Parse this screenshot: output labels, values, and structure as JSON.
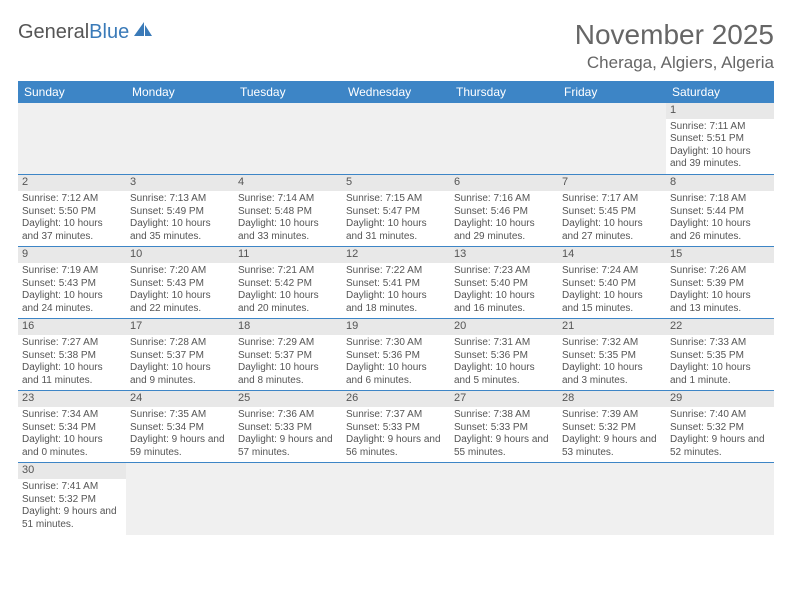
{
  "logo": {
    "text1": "General",
    "text2": "Blue"
  },
  "title": "November 2025",
  "location": "Cheraga, Algiers, Algeria",
  "colors": {
    "header_bg": "#3d85c6",
    "header_text": "#ffffff",
    "daynum_bg": "#e8e8e8",
    "empty_bg": "#f0f0f0",
    "border": "#3d85c6",
    "text": "#555555",
    "logo_blue": "#3a7ab8",
    "background": "#ffffff"
  },
  "day_headers": [
    "Sunday",
    "Monday",
    "Tuesday",
    "Wednesday",
    "Thursday",
    "Friday",
    "Saturday"
  ],
  "weeks": [
    [
      null,
      null,
      null,
      null,
      null,
      null,
      {
        "n": "1",
        "sr": "Sunrise: 7:11 AM",
        "ss": "Sunset: 5:51 PM",
        "dl": "Daylight: 10 hours and 39 minutes."
      }
    ],
    [
      {
        "n": "2",
        "sr": "Sunrise: 7:12 AM",
        "ss": "Sunset: 5:50 PM",
        "dl": "Daylight: 10 hours and 37 minutes."
      },
      {
        "n": "3",
        "sr": "Sunrise: 7:13 AM",
        "ss": "Sunset: 5:49 PM",
        "dl": "Daylight: 10 hours and 35 minutes."
      },
      {
        "n": "4",
        "sr": "Sunrise: 7:14 AM",
        "ss": "Sunset: 5:48 PM",
        "dl": "Daylight: 10 hours and 33 minutes."
      },
      {
        "n": "5",
        "sr": "Sunrise: 7:15 AM",
        "ss": "Sunset: 5:47 PM",
        "dl": "Daylight: 10 hours and 31 minutes."
      },
      {
        "n": "6",
        "sr": "Sunrise: 7:16 AM",
        "ss": "Sunset: 5:46 PM",
        "dl": "Daylight: 10 hours and 29 minutes."
      },
      {
        "n": "7",
        "sr": "Sunrise: 7:17 AM",
        "ss": "Sunset: 5:45 PM",
        "dl": "Daylight: 10 hours and 27 minutes."
      },
      {
        "n": "8",
        "sr": "Sunrise: 7:18 AM",
        "ss": "Sunset: 5:44 PM",
        "dl": "Daylight: 10 hours and 26 minutes."
      }
    ],
    [
      {
        "n": "9",
        "sr": "Sunrise: 7:19 AM",
        "ss": "Sunset: 5:43 PM",
        "dl": "Daylight: 10 hours and 24 minutes."
      },
      {
        "n": "10",
        "sr": "Sunrise: 7:20 AM",
        "ss": "Sunset: 5:43 PM",
        "dl": "Daylight: 10 hours and 22 minutes."
      },
      {
        "n": "11",
        "sr": "Sunrise: 7:21 AM",
        "ss": "Sunset: 5:42 PM",
        "dl": "Daylight: 10 hours and 20 minutes."
      },
      {
        "n": "12",
        "sr": "Sunrise: 7:22 AM",
        "ss": "Sunset: 5:41 PM",
        "dl": "Daylight: 10 hours and 18 minutes."
      },
      {
        "n": "13",
        "sr": "Sunrise: 7:23 AM",
        "ss": "Sunset: 5:40 PM",
        "dl": "Daylight: 10 hours and 16 minutes."
      },
      {
        "n": "14",
        "sr": "Sunrise: 7:24 AM",
        "ss": "Sunset: 5:40 PM",
        "dl": "Daylight: 10 hours and 15 minutes."
      },
      {
        "n": "15",
        "sr": "Sunrise: 7:26 AM",
        "ss": "Sunset: 5:39 PM",
        "dl": "Daylight: 10 hours and 13 minutes."
      }
    ],
    [
      {
        "n": "16",
        "sr": "Sunrise: 7:27 AM",
        "ss": "Sunset: 5:38 PM",
        "dl": "Daylight: 10 hours and 11 minutes."
      },
      {
        "n": "17",
        "sr": "Sunrise: 7:28 AM",
        "ss": "Sunset: 5:37 PM",
        "dl": "Daylight: 10 hours and 9 minutes."
      },
      {
        "n": "18",
        "sr": "Sunrise: 7:29 AM",
        "ss": "Sunset: 5:37 PM",
        "dl": "Daylight: 10 hours and 8 minutes."
      },
      {
        "n": "19",
        "sr": "Sunrise: 7:30 AM",
        "ss": "Sunset: 5:36 PM",
        "dl": "Daylight: 10 hours and 6 minutes."
      },
      {
        "n": "20",
        "sr": "Sunrise: 7:31 AM",
        "ss": "Sunset: 5:36 PM",
        "dl": "Daylight: 10 hours and 5 minutes."
      },
      {
        "n": "21",
        "sr": "Sunrise: 7:32 AM",
        "ss": "Sunset: 5:35 PM",
        "dl": "Daylight: 10 hours and 3 minutes."
      },
      {
        "n": "22",
        "sr": "Sunrise: 7:33 AM",
        "ss": "Sunset: 5:35 PM",
        "dl": "Daylight: 10 hours and 1 minute."
      }
    ],
    [
      {
        "n": "23",
        "sr": "Sunrise: 7:34 AM",
        "ss": "Sunset: 5:34 PM",
        "dl": "Daylight: 10 hours and 0 minutes."
      },
      {
        "n": "24",
        "sr": "Sunrise: 7:35 AM",
        "ss": "Sunset: 5:34 PM",
        "dl": "Daylight: 9 hours and 59 minutes."
      },
      {
        "n": "25",
        "sr": "Sunrise: 7:36 AM",
        "ss": "Sunset: 5:33 PM",
        "dl": "Daylight: 9 hours and 57 minutes."
      },
      {
        "n": "26",
        "sr": "Sunrise: 7:37 AM",
        "ss": "Sunset: 5:33 PM",
        "dl": "Daylight: 9 hours and 56 minutes."
      },
      {
        "n": "27",
        "sr": "Sunrise: 7:38 AM",
        "ss": "Sunset: 5:33 PM",
        "dl": "Daylight: 9 hours and 55 minutes."
      },
      {
        "n": "28",
        "sr": "Sunrise: 7:39 AM",
        "ss": "Sunset: 5:32 PM",
        "dl": "Daylight: 9 hours and 53 minutes."
      },
      {
        "n": "29",
        "sr": "Sunrise: 7:40 AM",
        "ss": "Sunset: 5:32 PM",
        "dl": "Daylight: 9 hours and 52 minutes."
      }
    ],
    [
      {
        "n": "30",
        "sr": "Sunrise: 7:41 AM",
        "ss": "Sunset: 5:32 PM",
        "dl": "Daylight: 9 hours and 51 minutes."
      },
      null,
      null,
      null,
      null,
      null,
      null
    ]
  ]
}
